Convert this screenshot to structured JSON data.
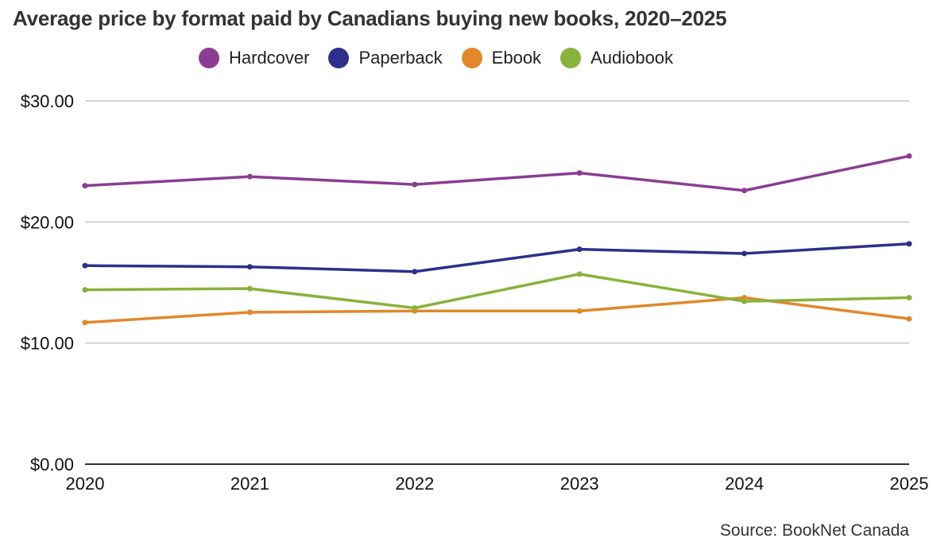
{
  "title": "Average price by format paid by Canadians buying new books, 2020–2025",
  "source": "Source: BookNet Canada",
  "colors": {
    "grid": "#c8c8c8",
    "axis": "#333333"
  },
  "chart_data": {
    "type": "line",
    "title": "Average price by format paid by Canadians buying new books, 2020–2025",
    "xlabel": "",
    "ylabel": "",
    "x": [
      "2020",
      "2021",
      "2022",
      "2023",
      "2024",
      "2025"
    ],
    "ylim": [
      0,
      30
    ],
    "yticks": [
      0,
      10,
      20,
      30
    ],
    "ytick_labels": [
      "$0.00",
      "$10.00",
      "$20.00",
      "$30.00"
    ],
    "grid": true,
    "legend_position": "top-center",
    "series": [
      {
        "name": "Hardcover",
        "color": "#8b3d93",
        "values": [
          23.0,
          23.75,
          23.1,
          24.05,
          22.6,
          25.45
        ]
      },
      {
        "name": "Paperback",
        "color": "#2e2f8c",
        "values": [
          16.4,
          16.3,
          15.9,
          17.75,
          17.4,
          18.2
        ]
      },
      {
        "name": "Ebook",
        "color": "#e2882a",
        "values": [
          11.7,
          12.55,
          12.65,
          12.65,
          13.75,
          12.0
        ]
      },
      {
        "name": "Audiobook",
        "color": "#89b23a",
        "values": [
          14.4,
          14.5,
          12.9,
          15.7,
          13.45,
          13.75
        ]
      }
    ]
  }
}
